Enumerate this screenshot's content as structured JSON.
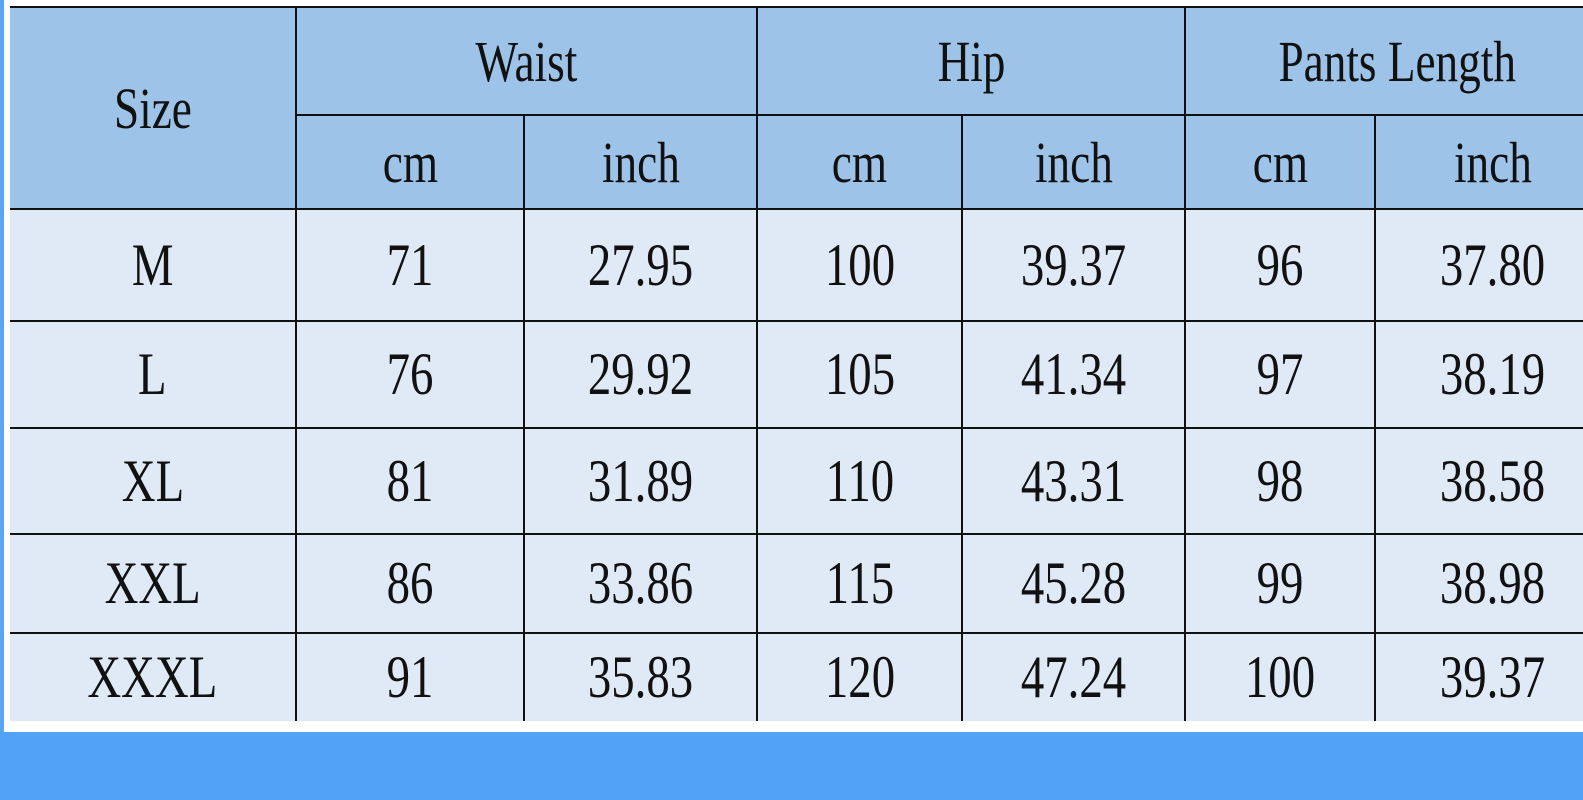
{
  "table": {
    "size_header": "Size",
    "groups": [
      "Waist",
      "Hip",
      "Pants Length"
    ],
    "units": [
      "cm",
      "inch",
      "cm",
      "inch",
      "cm",
      "inch"
    ],
    "rows": [
      [
        "M",
        "71",
        "27.95",
        "100",
        "39.37",
        "96",
        "37.80"
      ],
      [
        "L",
        "76",
        "29.92",
        "105",
        "41.34",
        "97",
        "38.19"
      ],
      [
        "XL",
        "81",
        "31.89",
        "110",
        "43.31",
        "98",
        "38.58"
      ],
      [
        "XXL",
        "86",
        "33.86",
        "115",
        "45.28",
        "99",
        "38.98"
      ],
      [
        "XXXL",
        "91",
        "35.83",
        "120",
        "47.24",
        "100",
        "39.37"
      ]
    ]
  },
  "colors": {
    "header_bg": "#9dc3e8",
    "cell_bg": "#dfeaf6",
    "band": "#52a2f7"
  }
}
